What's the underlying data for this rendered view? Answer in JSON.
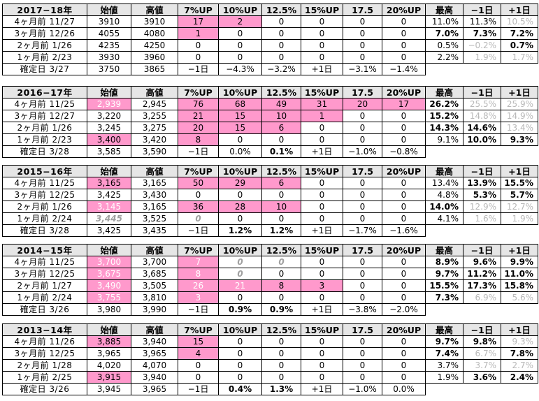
{
  "headers": [
    "始値",
    "高値",
    "7%UP",
    "10%UP",
    "12.5%",
    "15%UP",
    "17.5",
    "20%UP",
    "最高",
    "−1日",
    "+1日"
  ],
  "blocks": [
    {
      "title": "2017−18年",
      "rows": [
        {
          "label": "4ヶ月前  11/27",
          "cells": [
            "3910",
            "3910",
            "17",
            "2",
            "0",
            "0",
            "0",
            "0",
            "11.0%",
            "11.3%",
            "10.5%"
          ],
          "style": [
            "",
            "",
            "pink",
            "pink",
            "",
            "",
            "",
            "",
            "",
            "",
            "grey"
          ]
        },
        {
          "label": "3ヶ月前  12/26",
          "cells": [
            "4055",
            "4080",
            "1",
            "0",
            "0",
            "0",
            "0",
            "0",
            "7.0%",
            "7.3%",
            "7.2%"
          ],
          "style": [
            "",
            "",
            "pink",
            "",
            "",
            "",
            "",
            "",
            "bold",
            "bold",
            "bold"
          ]
        },
        {
          "label": "2ヶ月前   1/26",
          "cells": [
            "4235",
            "4250",
            "0",
            "0",
            "0",
            "0",
            "0",
            "0",
            "0.5%",
            "−0.2%",
            "0.7%"
          ],
          "style": [
            "",
            "",
            "",
            "",
            "",
            "",
            "",
            "",
            "",
            "grey",
            "bold"
          ]
        },
        {
          "label": "1ヶ月前   2/23",
          "cells": [
            "3930",
            "3960",
            "0",
            "0",
            "0",
            "0",
            "0",
            "0",
            "2.2%",
            "1.9%",
            "1.7%"
          ],
          "style": [
            "",
            "",
            "",
            "",
            "",
            "",
            "",
            "",
            "",
            "grey",
            "grey"
          ]
        }
      ],
      "confirm": {
        "label": "確定日   3/27",
        "cells": [
          "3750",
          "3865",
          "−1日",
          "−4.3%",
          "−3.2%",
          "+1日",
          "−3.1%",
          "−1.4%",
          "",
          "",
          ""
        ],
        "style": [
          "",
          "",
          "",
          "",
          "",
          "",
          "",
          "",
          "blank",
          "blank",
          "blank"
        ]
      }
    },
    {
      "title": "2016−17年",
      "rows": [
        {
          "label": "4ヶ月前  11/25",
          "cells": [
            "2,939",
            "2,945",
            "76",
            "68",
            "49",
            "31",
            "20",
            "17",
            "26.2%",
            "25.5%",
            "25.9%"
          ],
          "style": [
            "pinkw",
            "",
            "pink",
            "pink",
            "pink",
            "pink",
            "pink",
            "pink",
            "bold",
            "grey",
            "grey"
          ]
        },
        {
          "label": "3ヶ月前  12/27",
          "cells": [
            "3,220",
            "3,255",
            "21",
            "15",
            "10",
            "1",
            "0",
            "0",
            "15.2%",
            "14.8%",
            "14.9%"
          ],
          "style": [
            "",
            "",
            "pink",
            "pink",
            "pink",
            "pink",
            "",
            "",
            "bold",
            "grey",
            "grey"
          ]
        },
        {
          "label": "2ヶ月前   1/26",
          "cells": [
            "3,245",
            "3,275",
            "20",
            "15",
            "6",
            "0",
            "0",
            "0",
            "14.3%",
            "14.6%",
            "13.4%"
          ],
          "style": [
            "",
            "",
            "pink",
            "pink",
            "pink",
            "",
            "",
            "",
            "bold",
            "bold",
            "grey"
          ]
        },
        {
          "label": "1ヶ月前   2/23",
          "cells": [
            "3,400",
            "3,420",
            "8",
            "0",
            "0",
            "0",
            "0",
            "0",
            "9.1%",
            "10.0%",
            "9.3%"
          ],
          "style": [
            "pink",
            "",
            "pink",
            "",
            "",
            "",
            "",
            "",
            "",
            "bold",
            "bold"
          ]
        }
      ],
      "confirm": {
        "label": "確定日   3/28",
        "cells": [
          "3,585",
          "3,590",
          "−1日",
          "0.0%",
          "0.1%",
          "+1日",
          "−1.0%",
          "−0.8%",
          "",
          "",
          ""
        ],
        "style": [
          "",
          "",
          "",
          "",
          "bold",
          "",
          "",
          "",
          "blank",
          "blank",
          "blank"
        ]
      }
    },
    {
      "title": "2015−16年",
      "rows": [
        {
          "label": "4ヶ月前  11/25",
          "cells": [
            "3,165",
            "3,165",
            "50",
            "29",
            "6",
            "0",
            "0",
            "0",
            "13.4%",
            "13.9%",
            "15.5%"
          ],
          "style": [
            "pink",
            "",
            "pink",
            "pink",
            "pink",
            "",
            "",
            "",
            "",
            "bold",
            "bold"
          ]
        },
        {
          "label": "3ヶ月前  12/25",
          "cells": [
            "3,425",
            "3,430",
            "0",
            "0",
            "0",
            "0",
            "0",
            "0",
            "4.8%",
            "5.3%",
            "5.7%"
          ],
          "style": [
            "",
            "",
            "",
            "",
            "",
            "",
            "",
            "",
            "",
            "bold",
            "bold"
          ]
        },
        {
          "label": "2ヶ月前   1/26",
          "cells": [
            "3,145",
            "3,165",
            "36",
            "28",
            "10",
            "0",
            "0",
            "0",
            "14.0%",
            "12.9%",
            "12.7%"
          ],
          "style": [
            "pinkw",
            "",
            "pink",
            "pink",
            "pink",
            "",
            "",
            "",
            "bold",
            "grey",
            "grey"
          ]
        },
        {
          "label": "1ヶ月前   2/24",
          "cells": [
            "3,445",
            "3,525",
            "0",
            "0",
            "0",
            "0",
            "0",
            "0",
            "4.1%",
            "1.6%",
            "1.9%"
          ],
          "style": [
            "greyital",
            "",
            "greyital",
            "",
            "",
            "",
            "",
            "",
            "",
            "grey",
            "grey"
          ]
        }
      ],
      "confirm": {
        "label": "確定日   3/28",
        "cells": [
          "3,425",
          "3,435",
          "−1日",
          "1.2%",
          "1.2%",
          "+1日",
          "−1.7%",
          "−1.6%",
          "",
          "",
          ""
        ],
        "style": [
          "",
          "",
          "",
          "bold",
          "bold",
          "",
          "",
          "",
          "blank",
          "blank",
          "blank"
        ]
      }
    },
    {
      "title": "2014−15年",
      "rows": [
        {
          "label": "4ヶ月前  11/25",
          "cells": [
            "3,700",
            "3,700",
            "7",
            "0",
            "0",
            "0",
            "0",
            "0",
            "8.9%",
            "9.6%",
            "9.9%"
          ],
          "style": [
            "pinkw",
            "",
            "pinkw",
            "greyital",
            "greyital",
            "",
            "",
            "",
            "bold",
            "bold",
            "bold"
          ]
        },
        {
          "label": "3ヶ月前  12/25",
          "cells": [
            "3,675",
            "3,685",
            "8",
            "0",
            "0",
            "0",
            "0",
            "0",
            "9.7%",
            "11.2%",
            "11.0%"
          ],
          "style": [
            "pinkw",
            "",
            "pinkw",
            "greyital",
            "",
            "",
            "",
            "",
            "bold",
            "bold",
            "bold"
          ]
        },
        {
          "label": "2ヶ月前   1/27",
          "cells": [
            "3,490",
            "3,505",
            "26",
            "21",
            "8",
            "3",
            "0",
            "0",
            "15.5%",
            "17.3%",
            "15.8%"
          ],
          "style": [
            "pinkw",
            "",
            "pinkw",
            "pinkw",
            "pink",
            "pink",
            "",
            "",
            "bold",
            "bold",
            "bold"
          ]
        },
        {
          "label": "1ヶ月前   2/24",
          "cells": [
            "3,755",
            "3,810",
            "3",
            "0",
            "0",
            "0",
            "0",
            "0",
            "7.3%",
            "6.9%",
            "5.6%"
          ],
          "style": [
            "pinkw",
            "",
            "pinkw",
            "",
            "",
            "",
            "",
            "",
            "bold",
            "grey",
            "grey"
          ]
        }
      ],
      "confirm": {
        "label": "確定日   3/26",
        "cells": [
          "3,980",
          "3,990",
          "−1日",
          "0.9%",
          "0.9%",
          "+1日",
          "−3.8%",
          "−2.0%",
          "",
          "",
          ""
        ],
        "style": [
          "",
          "",
          "",
          "bold",
          "bold",
          "",
          "",
          "",
          "blank",
          "blank",
          "blank"
        ]
      }
    },
    {
      "title": "2013−14年",
      "rows": [
        {
          "label": "4ヶ月前  11/26",
          "cells": [
            "3,885",
            "3,940",
            "15",
            "0",
            "0",
            "0",
            "0",
            "0",
            "9.7%",
            "9.8%",
            "9.3%"
          ],
          "style": [
            "pink",
            "",
            "pink",
            "",
            "",
            "",
            "",
            "",
            "bold",
            "bold",
            "grey"
          ]
        },
        {
          "label": "3ヶ月前  12/25",
          "cells": [
            "3,965",
            "3,965",
            "4",
            "0",
            "0",
            "0",
            "0",
            "0",
            "7.4%",
            "6.7%",
            "7.8%"
          ],
          "style": [
            "",
            "",
            "pink",
            "",
            "",
            "",
            "",
            "",
            "bold",
            "grey",
            "bold"
          ]
        },
        {
          "label": "2ヶ月前   1/28",
          "cells": [
            "4,020",
            "4,070",
            "0",
            "0",
            "0",
            "0",
            "0",
            "0",
            "3.7%",
            "3.7%",
            "2.7%"
          ],
          "style": [
            "",
            "",
            "",
            "",
            "",
            "",
            "",
            "",
            "",
            "grey",
            "grey"
          ]
        },
        {
          "label": "1ヶ月前   2/25",
          "cells": [
            "3,915",
            "3,940",
            "0",
            "0",
            "0",
            "0",
            "0",
            "0",
            "1.9%",
            "3.6%",
            "2.4%"
          ],
          "style": [
            "pink",
            "",
            "",
            "",
            "",
            "",
            "",
            "",
            "",
            "bold",
            "bold"
          ]
        }
      ],
      "confirm": {
        "label": "確定日   3/26",
        "cells": [
          "3,945",
          "3,965",
          "−1日",
          "0.4%",
          "1.3%",
          "+1日",
          "−1.0%",
          "0.0%",
          "",
          "",
          ""
        ],
        "style": [
          "",
          "",
          "",
          "bold",
          "bold",
          "",
          "",
          "",
          "blank",
          "blank",
          "blank"
        ]
      }
    }
  ]
}
